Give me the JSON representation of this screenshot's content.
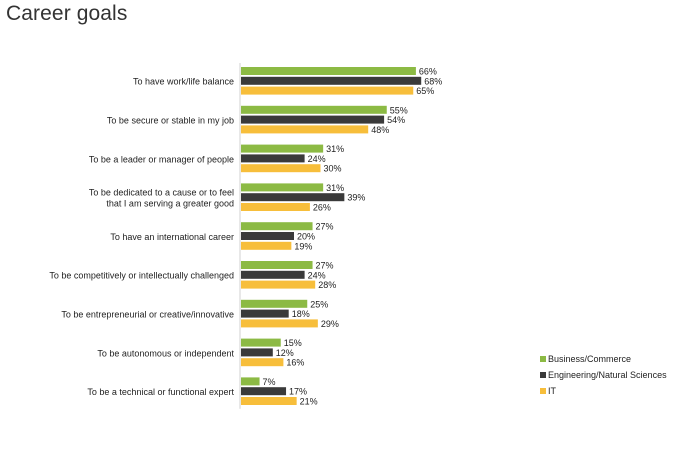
{
  "title": "Career goals",
  "chart_data": {
    "type": "bar",
    "orientation": "horizontal",
    "value_unit": "%",
    "categories": [
      [
        "To have work/life balance"
      ],
      [
        "To be secure or stable in my job"
      ],
      [
        "To be a leader or manager of people"
      ],
      [
        "To be dedicated to a cause or to feel",
        "that I am serving a greater good"
      ],
      [
        "To have an international career"
      ],
      [
        "To be competitively or intellectually challenged"
      ],
      [
        "To be entrepreneurial or creative/innovative"
      ],
      [
        "To be autonomous or independent"
      ],
      [
        "To be a technical or functional expert"
      ]
    ],
    "series": [
      {
        "name": "Business/Commerce",
        "color": "#8CBA44",
        "values": [
          66,
          55,
          31,
          31,
          27,
          27,
          25,
          15,
          7
        ]
      },
      {
        "name": "Engineering/Natural Sciences",
        "color": "#3A3A3A",
        "values": [
          68,
          54,
          24,
          39,
          20,
          24,
          18,
          12,
          17
        ]
      },
      {
        "name": "IT",
        "color": "#F7BE3B",
        "values": [
          65,
          48,
          30,
          26,
          19,
          28,
          29,
          16,
          21
        ]
      }
    ],
    "legend_position": "bottom-right",
    "grid": false
  }
}
